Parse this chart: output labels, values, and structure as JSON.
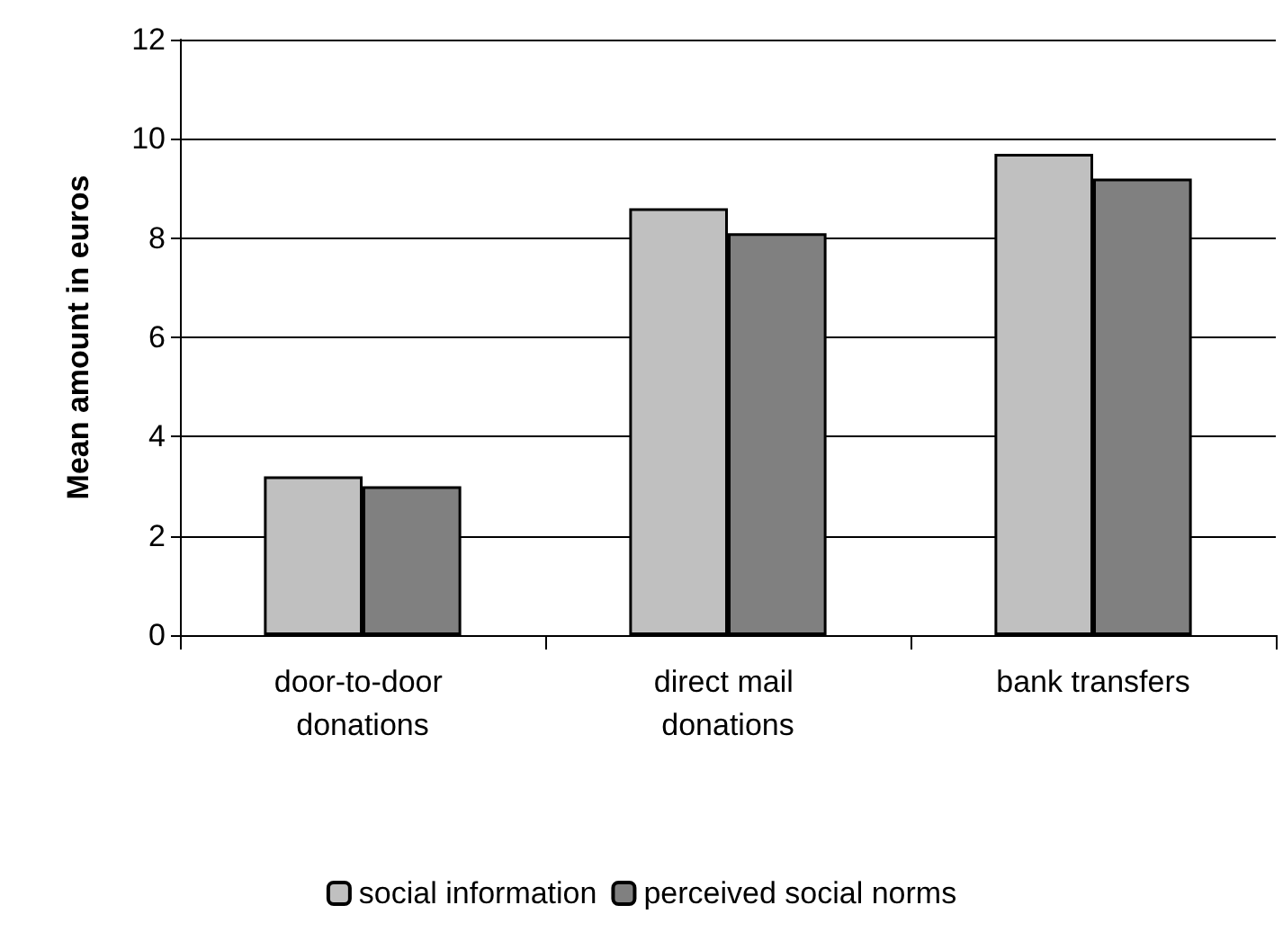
{
  "chart_data": {
    "type": "bar",
    "ylabel": "Mean amount in euros",
    "categories": [
      "door-to-door donations",
      "direct mail donations",
      "bank transfers"
    ],
    "series": [
      {
        "name": "social information",
        "color": "#c0c0c0",
        "values": [
          3.2,
          8.6,
          9.7
        ]
      },
      {
        "name": "perceived social norms",
        "color": "#808080",
        "values": [
          3.0,
          8.1,
          9.2
        ]
      }
    ],
    "ylim": [
      0,
      12
    ],
    "yticks": [
      0,
      2,
      4,
      6,
      8,
      10,
      12
    ],
    "grid": "y",
    "legend": "bottom"
  }
}
